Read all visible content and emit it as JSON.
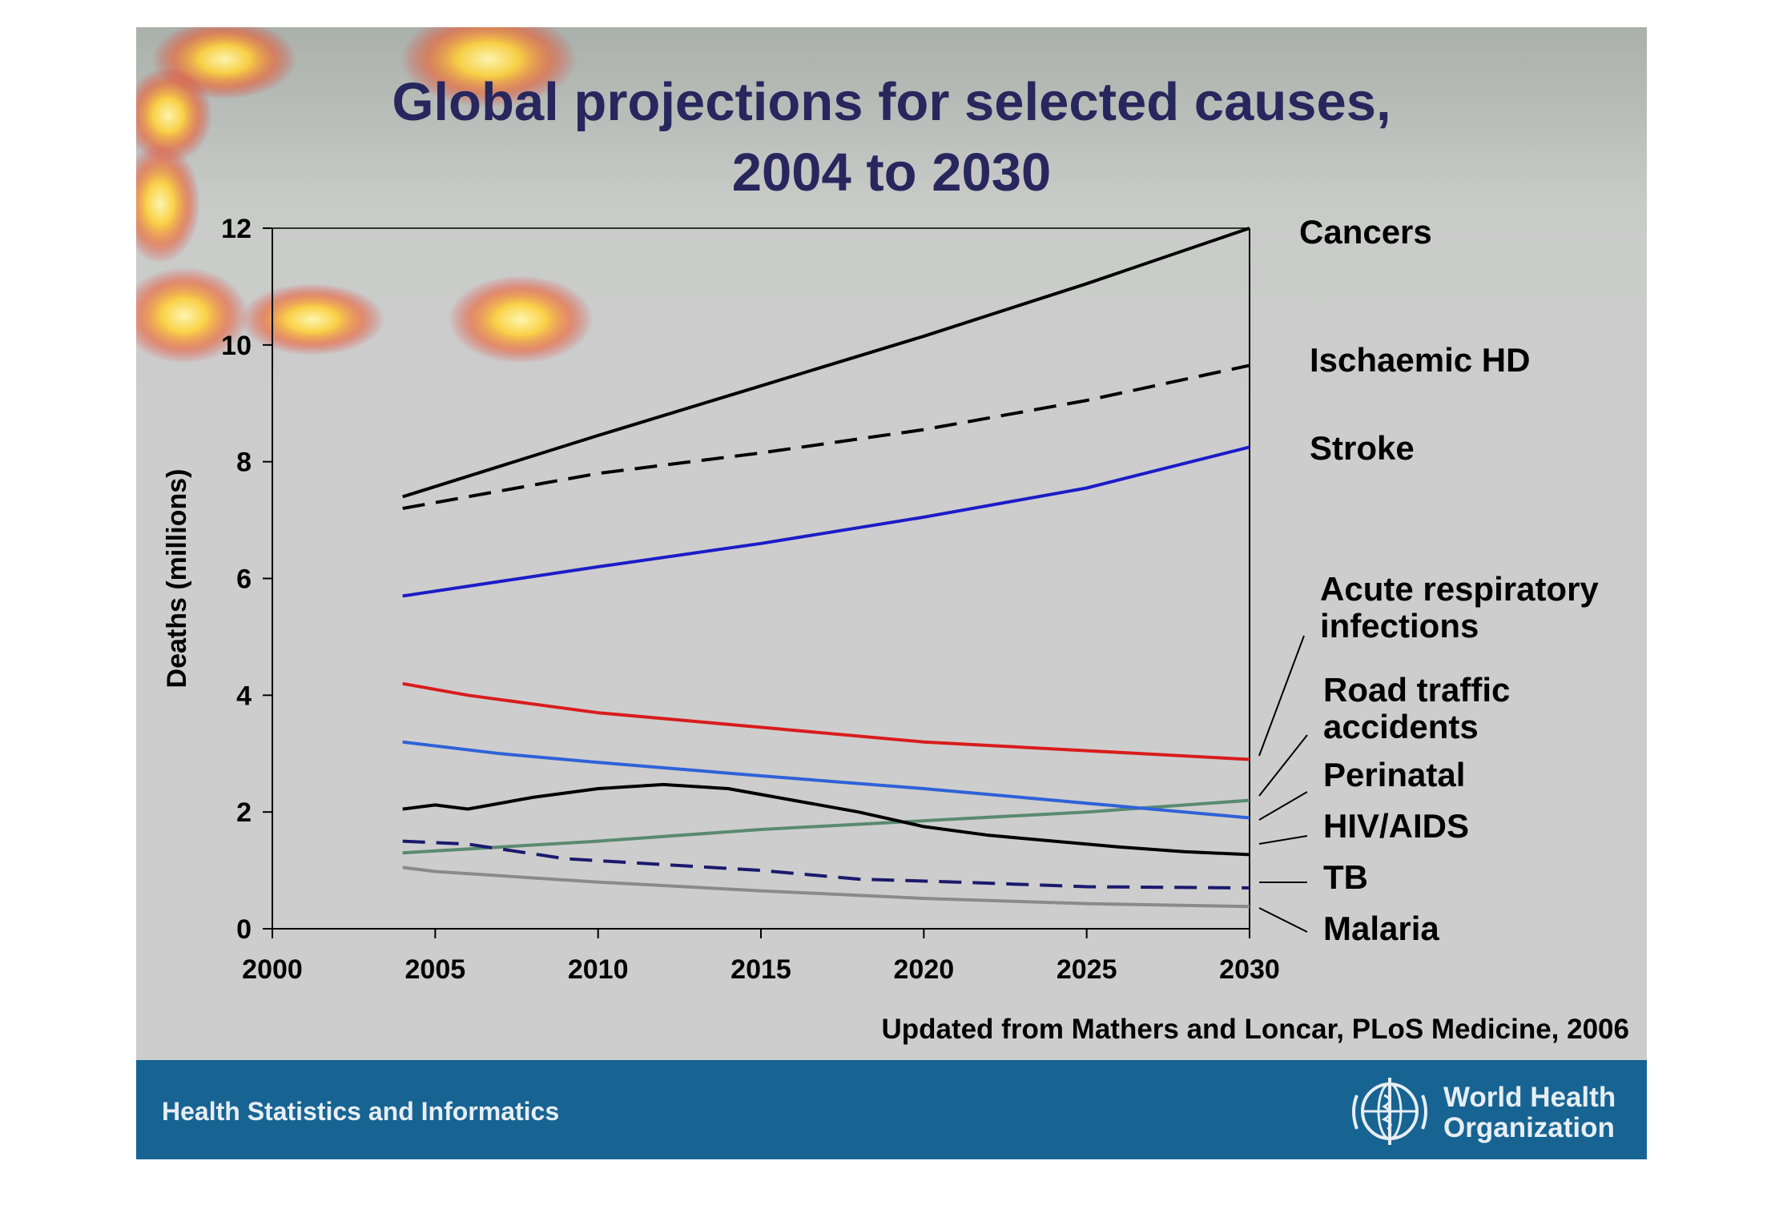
{
  "slide": {
    "title_line1": "Global projections for selected causes,",
    "title_line2": "2004 to 2030",
    "citation": "Updated from Mathers and Loncar, PLoS Medicine, 2006",
    "footer_text": "Health Statistics and Informatics",
    "org_name_line1": "World Health",
    "org_name_line2": "Organization",
    "colors": {
      "background": "#cdcdcd",
      "footer": "#176493",
      "title": "#27275e"
    }
  },
  "chart_data": {
    "type": "line",
    "title": "Global projections for selected causes, 2004 to 2030",
    "xlabel": "",
    "ylabel": "Deaths (millions)",
    "xlim": [
      2000,
      2030
    ],
    "ylim": [
      0,
      12
    ],
    "x_ticks": [
      2000,
      2005,
      2010,
      2015,
      2020,
      2025,
      2030
    ],
    "y_ticks": [
      0,
      2,
      4,
      6,
      8,
      10,
      12
    ],
    "grid": false,
    "legend": "direct labels at right",
    "series": [
      {
        "name": "Cancers",
        "color": "#000000",
        "dash": "solid",
        "points": [
          [
            2004,
            7.4
          ],
          [
            2010,
            8.45
          ],
          [
            2015,
            9.3
          ],
          [
            2020,
            10.15
          ],
          [
            2025,
            11.05
          ],
          [
            2030,
            12.0
          ]
        ]
      },
      {
        "name": "Ischaemic HD",
        "color": "#000000",
        "dash": "dashed",
        "points": [
          [
            2004,
            7.2
          ],
          [
            2010,
            7.8
          ],
          [
            2015,
            8.15
          ],
          [
            2020,
            8.55
          ],
          [
            2025,
            9.05
          ],
          [
            2030,
            9.65
          ]
        ]
      },
      {
        "name": "Stroke",
        "color": "#1c1cc8",
        "dash": "solid",
        "points": [
          [
            2004,
            5.7
          ],
          [
            2010,
            6.2
          ],
          [
            2015,
            6.6
          ],
          [
            2020,
            7.05
          ],
          [
            2025,
            7.55
          ],
          [
            2030,
            8.25
          ]
        ]
      },
      {
        "name": "Acute respiratory infections",
        "color": "#d81c1c",
        "dash": "solid",
        "points": [
          [
            2004,
            4.2
          ],
          [
            2006,
            4.0
          ],
          [
            2008,
            3.85
          ],
          [
            2010,
            3.7
          ],
          [
            2015,
            3.45
          ],
          [
            2020,
            3.2
          ],
          [
            2025,
            3.05
          ],
          [
            2030,
            2.9
          ]
        ]
      },
      {
        "name": "Road traffic accidents",
        "color": "#5a8a6e",
        "dash": "solid",
        "points": [
          [
            2004,
            1.3
          ],
          [
            2010,
            1.5
          ],
          [
            2015,
            1.7
          ],
          [
            2020,
            1.85
          ],
          [
            2025,
            2.0
          ],
          [
            2030,
            2.2
          ]
        ]
      },
      {
        "name": "Perinatal",
        "color": "#2e62d8",
        "dash": "solid",
        "points": [
          [
            2004,
            3.2
          ],
          [
            2007,
            3.0
          ],
          [
            2010,
            2.85
          ],
          [
            2015,
            2.62
          ],
          [
            2020,
            2.4
          ],
          [
            2025,
            2.15
          ],
          [
            2030,
            1.9
          ]
        ]
      },
      {
        "name": "HIV/AIDS",
        "color": "#000000",
        "dash": "solid",
        "points": [
          [
            2004,
            2.05
          ],
          [
            2005,
            2.12
          ],
          [
            2006,
            2.05
          ],
          [
            2008,
            2.25
          ],
          [
            2010,
            2.4
          ],
          [
            2012,
            2.47
          ],
          [
            2014,
            2.4
          ],
          [
            2016,
            2.2
          ],
          [
            2018,
            2.0
          ],
          [
            2020,
            1.75
          ],
          [
            2022,
            1.6
          ],
          [
            2024,
            1.5
          ],
          [
            2026,
            1.4
          ],
          [
            2028,
            1.32
          ],
          [
            2030,
            1.27
          ]
        ]
      },
      {
        "name": "TB",
        "color": "#1a1a6e",
        "dash": "dashed",
        "points": [
          [
            2004,
            1.5
          ],
          [
            2006,
            1.45
          ],
          [
            2009,
            1.2
          ],
          [
            2012,
            1.1
          ],
          [
            2015,
            1.0
          ],
          [
            2018,
            0.85
          ],
          [
            2021,
            0.8
          ],
          [
            2025,
            0.72
          ],
          [
            2030,
            0.7
          ]
        ]
      },
      {
        "name": "Malaria",
        "color": "#8a8a8a",
        "dash": "solid",
        "points": [
          [
            2004,
            1.05
          ],
          [
            2005,
            0.98
          ],
          [
            2010,
            0.8
          ],
          [
            2015,
            0.65
          ],
          [
            2020,
            0.52
          ],
          [
            2025,
            0.43
          ],
          [
            2030,
            0.38
          ]
        ]
      }
    ],
    "right_labels": [
      {
        "lines": [
          "Cancers"
        ]
      },
      {
        "lines": [
          "Ischaemic HD"
        ]
      },
      {
        "lines": [
          "Stroke"
        ]
      },
      {
        "lines": [
          "Acute respiratory",
          "infections"
        ]
      },
      {
        "lines": [
          "Road traffic",
          "accidents"
        ]
      },
      {
        "lines": [
          "Perinatal"
        ]
      },
      {
        "lines": [
          "HIV/AIDS"
        ]
      },
      {
        "lines": [
          "TB"
        ]
      },
      {
        "lines": [
          "Malaria"
        ]
      }
    ]
  }
}
